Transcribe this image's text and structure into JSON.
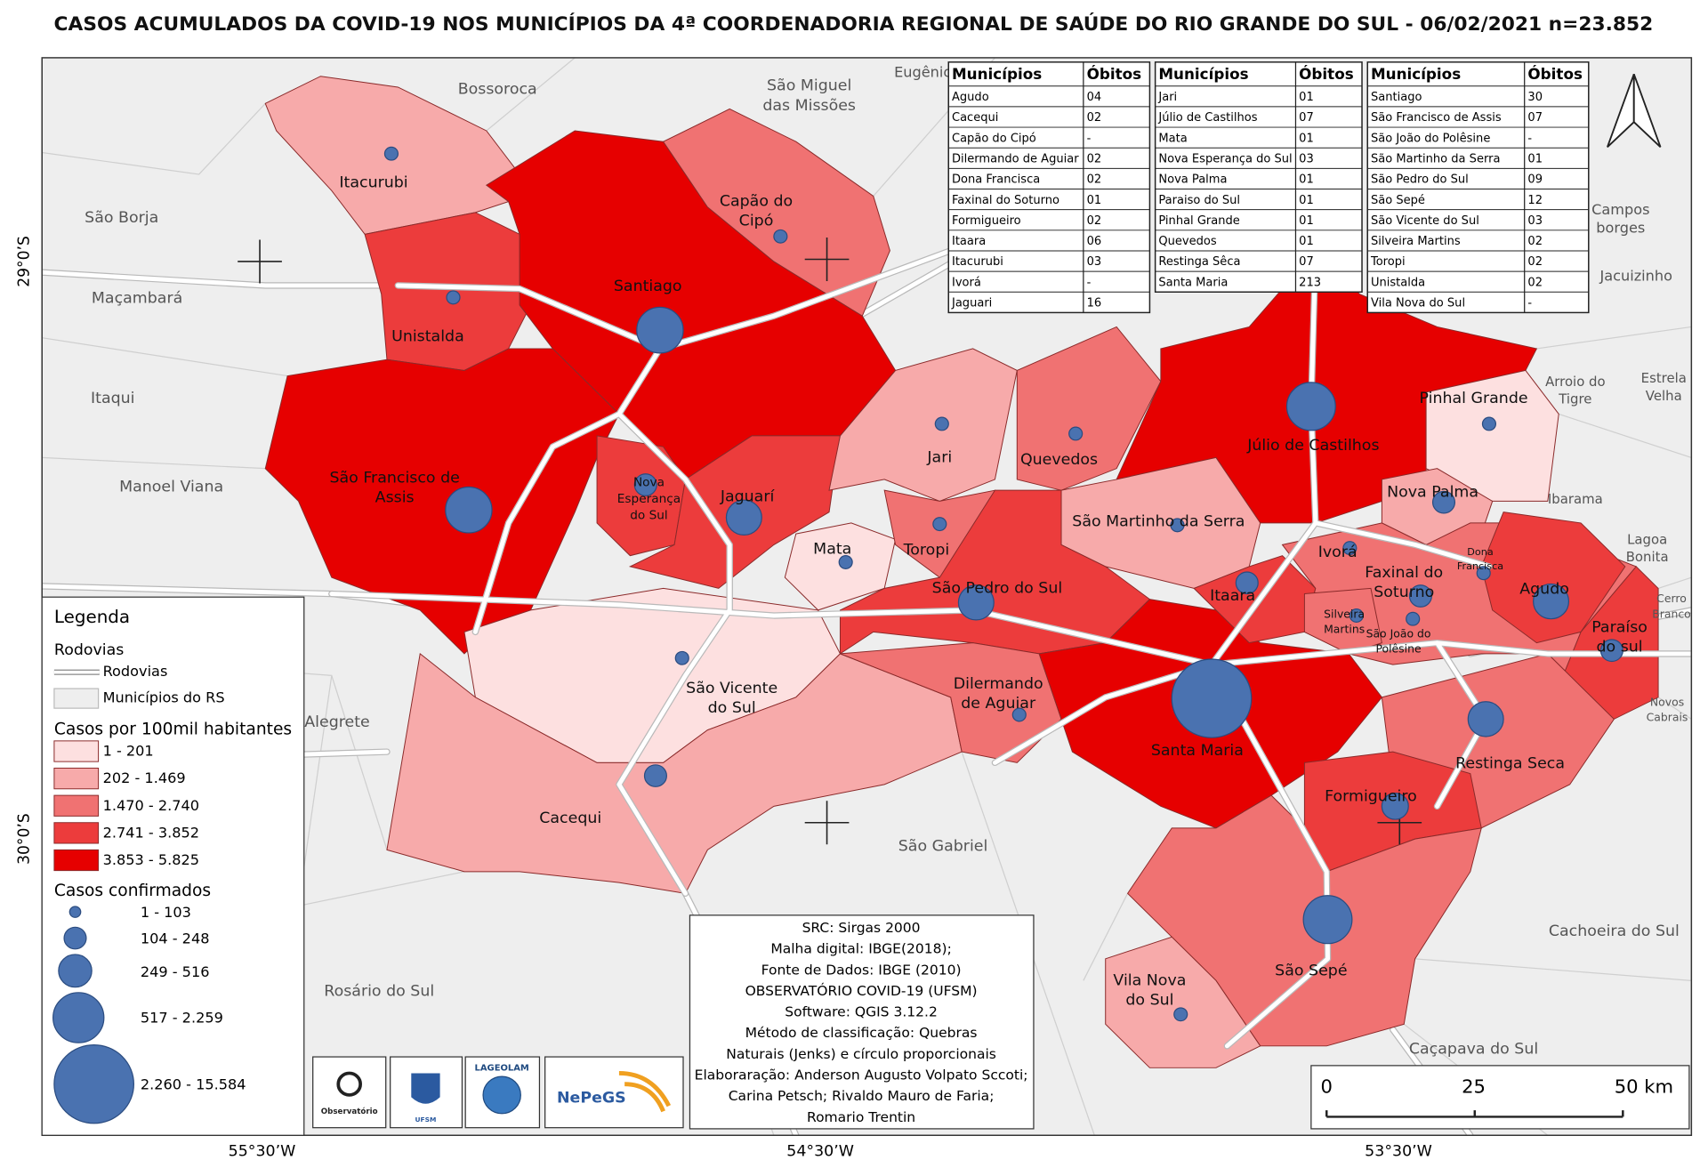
{
  "title": "CASOS ACUMULADOS DA COVID-19 NOS MUNICÍPIOS DA 4ª COORDENADORIA REGIONAL DE SAÚDE DO RIO GRANDE DO SUL - 06/02/2021 n=23.852",
  "tables": [
    {
      "headers": [
        "Municípios",
        "Óbitos"
      ],
      "rows": [
        [
          "Agudo",
          "04"
        ],
        [
          "Cacequi",
          "02"
        ],
        [
          "Capão do Cipó",
          "-"
        ],
        [
          "Dilermando de Aguiar",
          "02"
        ],
        [
          "Dona Francisca",
          "02"
        ],
        [
          "Faxinal do Soturno",
          "01"
        ],
        [
          "Formigueiro",
          "02"
        ],
        [
          "Itaara",
          "06"
        ],
        [
          "Itacurubi",
          "03"
        ],
        [
          "Ivorá",
          "-"
        ],
        [
          "Jaguari",
          "16"
        ]
      ]
    },
    {
      "headers": [
        "Municípios",
        "Óbitos"
      ],
      "rows": [
        [
          "Jari",
          "01"
        ],
        [
          "Júlio de Castilhos",
          "07"
        ],
        [
          "Mata",
          "01"
        ],
        [
          "Nova Esperança do Sul",
          "03"
        ],
        [
          "Nova Palma",
          "01"
        ],
        [
          "Paraiso do Sul",
          "01"
        ],
        [
          "Pinhal Grande",
          "01"
        ],
        [
          "Quevedos",
          "01"
        ],
        [
          "Restinga Sêca",
          "07"
        ],
        [
          "Santa Maria",
          "213"
        ]
      ]
    },
    {
      "headers": [
        "Municípios",
        "Óbitos"
      ],
      "rows": [
        [
          "Santiago",
          "30"
        ],
        [
          "São Francisco de Assis",
          "07"
        ],
        [
          "São João do Polêsine",
          "-"
        ],
        [
          "São Martinho da Serra",
          "01"
        ],
        [
          "São Pedro do Sul",
          "09"
        ],
        [
          "São Sepé",
          "12"
        ],
        [
          "São Vicente do Sul",
          "03"
        ],
        [
          "Silveira Martins",
          "02"
        ],
        [
          "Toropi",
          "02"
        ],
        [
          "Unistalda",
          "02"
        ],
        [
          "Vila Nova do Sul",
          "-"
        ]
      ]
    }
  ],
  "map": {
    "municipalities": [
      [
        "Itacurubi"
      ],
      [
        "Capão do",
        "Cipó"
      ],
      [
        "Santiago"
      ],
      [
        "Unistalda"
      ],
      [
        "São Francisco de",
        "Assis"
      ],
      [
        "Nova",
        "Esperança",
        "do Sul"
      ],
      [
        "Jaguarí"
      ],
      [
        "Mata"
      ],
      [
        "Toropi"
      ],
      [
        "Jari"
      ],
      [
        "Quevedos"
      ],
      [
        "Júlio de Castilhos"
      ],
      [
        "Pinhal Grande"
      ],
      [
        "Nova Palma"
      ],
      [
        "São Martinho da Serra"
      ],
      [
        "Ivorá"
      ],
      [
        "Dona",
        "Francisca"
      ],
      [
        "Faxinal do",
        "Soturno"
      ],
      [
        "Agudo"
      ],
      [
        "Itaara"
      ],
      [
        "Silveira",
        "Martins"
      ],
      [
        "São João do",
        "Polêsine"
      ],
      [
        "Paraíso",
        "do sul"
      ],
      [
        "São Pedro do Sul"
      ],
      [
        "São Vicente",
        "do Sul"
      ],
      [
        "Dilermando",
        "de Aguiar"
      ],
      [
        "Santa Maria"
      ],
      [
        "Restinga Seca"
      ],
      [
        "Formigueiro"
      ],
      [
        "Cacequi"
      ],
      [
        "São Sepé"
      ],
      [
        "Vila Nova",
        "do Sul"
      ]
    ],
    "neighbors": [
      [
        "Bossoroca"
      ],
      [
        "Eugênio"
      ],
      [
        "São Miguel",
        "das Missões"
      ],
      [
        "São Borja"
      ],
      [
        "Maçambará"
      ],
      [
        "Itaqui"
      ],
      [
        "Manoel Viana"
      ],
      [
        "Alegrete"
      ],
      [
        "Rosário do Sul"
      ],
      [
        "São Gabriel"
      ],
      [
        "Cachoeira do Sul"
      ],
      [
        "Caçapava do Sul"
      ],
      [
        "Campos",
        "borges"
      ],
      [
        "Jacuizinho"
      ],
      [
        "Arroio do",
        "Tigre"
      ],
      [
        "Estrela",
        "Velha"
      ],
      [
        "Ibarama"
      ],
      [
        "Lagoa",
        "Bonita"
      ],
      [
        "Cerro",
        "Branco"
      ],
      [
        "Novos",
        "Cabrais"
      ]
    ],
    "latitudes": [
      "29°0’S",
      "30°0’S"
    ],
    "longitudes": [
      "55°30’W",
      "54°30’W",
      "53°30’W"
    ]
  },
  "legend": {
    "title": "Legenda",
    "roads_title": "Rodovias",
    "roads_item": "Rodovias",
    "municipalities_item": "Municípios do RS",
    "rate_title": "Casos por 100mil habitantes",
    "rate_classes": [
      {
        "label": "1 - 201",
        "color": "#fde0e0"
      },
      {
        "label": "202 - 1.469",
        "color": "#f7aaaa"
      },
      {
        "label": "1.470 - 2.740",
        "color": "#f07272"
      },
      {
        "label": "2.741 - 3.852",
        "color": "#ec3c3c"
      },
      {
        "label": "3.853 - 5.825",
        "color": "#e60000"
      }
    ],
    "cases_title": "Casos confirmados",
    "cases_classes": [
      "1 - 103",
      "104 - 248",
      "249 - 516",
      "517 - 2.259",
      "2.260 - 15.584"
    ]
  },
  "credits": [
    "SRC: Sirgas 2000",
    "Malha digital: IBGE(2018);",
    "Fonte de Dados: IBGE (2010)",
    "OBSERVATÓRIO COVID-19 (UFSM)",
    "Software: QGIS 3.12.2",
    "Método de classificação: Quebras",
    "Naturais (Jenks) e círculo proporcionais",
    "Elaboraração: Anderson Augusto Volpato Sccoti;",
    "Carina Petsch; Rivaldo Mauro de Faria;",
    "Romario Trentin"
  ],
  "scale": [
    "0",
    "25",
    "50 km"
  ],
  "logos": [
    "Observatório",
    "UFSM",
    "LAGEOLAM",
    "NePeGS"
  ]
}
